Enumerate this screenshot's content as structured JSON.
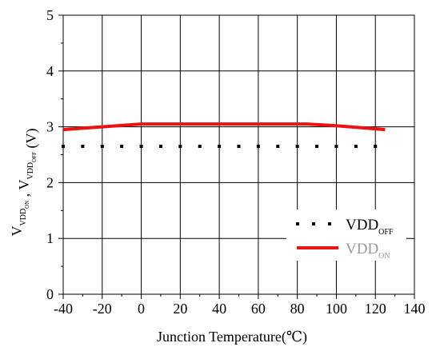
{
  "chart_data": {
    "type": "line",
    "title": "",
    "xlabel": "Junction Temperature(℃)",
    "ylabel": {
      "parts": [
        {
          "text": "V",
          "sub": "VDD",
          "subsub": "ON"
        },
        {
          "text": " , "
        },
        {
          "text": "V",
          "sub": "VDD",
          "subsub": "OFF"
        },
        {
          "text": " (V)"
        }
      ]
    },
    "xlim": [
      -40,
      140
    ],
    "ylim": [
      0,
      5
    ],
    "xticks": [
      -40,
      -20,
      0,
      20,
      40,
      60,
      80,
      100,
      120,
      140
    ],
    "yticks": [
      0,
      1,
      2,
      3,
      4,
      5
    ],
    "grid": true,
    "legend_position": "lower-right",
    "series": [
      {
        "name_main": "VDD",
        "name_sub": "OFF",
        "style": "dotted",
        "color": "#000000",
        "label_color": "#000000",
        "x": [
          -40,
          -30,
          -20,
          -10,
          0,
          10,
          20,
          30,
          40,
          50,
          60,
          70,
          80,
          90,
          100,
          110,
          120
        ],
        "y": [
          2.65,
          2.65,
          2.65,
          2.65,
          2.65,
          2.65,
          2.65,
          2.65,
          2.65,
          2.65,
          2.65,
          2.65,
          2.65,
          2.65,
          2.65,
          2.65,
          2.65
        ]
      },
      {
        "name_main": "VDD",
        "name_sub": "ON",
        "style": "solid",
        "color": "#ee1111",
        "label_color": "#999999",
        "x": [
          -40,
          -20,
          0,
          20,
          40,
          60,
          85,
          100,
          125
        ],
        "y": [
          2.95,
          3.0,
          3.05,
          3.05,
          3.05,
          3.05,
          3.05,
          3.02,
          2.95
        ]
      }
    ]
  }
}
